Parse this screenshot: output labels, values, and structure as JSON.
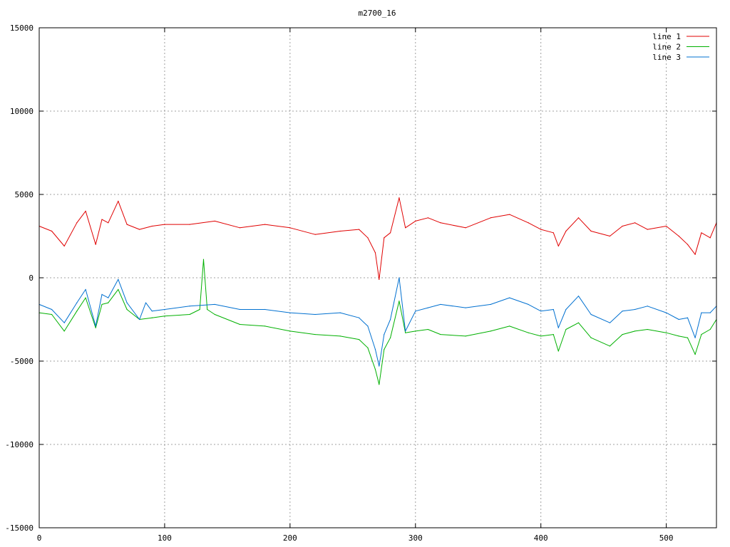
{
  "chart_data": {
    "type": "line",
    "title": "m2700_16",
    "xlabel": "",
    "ylabel": "",
    "xlim": [
      0,
      540
    ],
    "ylim": [
      -15000,
      15000
    ],
    "xticks": [
      0,
      100,
      200,
      300,
      400,
      500
    ],
    "yticks": [
      -15000,
      -10000,
      -5000,
      0,
      5000,
      10000,
      15000
    ],
    "grid": true,
    "legend_position": "top-right",
    "series": [
      {
        "name": "line 1",
        "color": "#e00000",
        "x": [
          0,
          10,
          20,
          30,
          37,
          45,
          50,
          55,
          63,
          70,
          80,
          90,
          100,
          120,
          140,
          160,
          180,
          200,
          220,
          240,
          255,
          262,
          268,
          271,
          275,
          280,
          287,
          292,
          300,
          310,
          320,
          340,
          360,
          375,
          390,
          400,
          410,
          414,
          420,
          430,
          440,
          455,
          465,
          475,
          485,
          500,
          510,
          517,
          523,
          528,
          535,
          540
        ],
        "y": [
          3100,
          2800,
          1900,
          3300,
          4000,
          2000,
          3500,
          3300,
          4600,
          3200,
          2900,
          3100,
          3200,
          3200,
          3400,
          3000,
          3200,
          3000,
          2600,
          2800,
          2900,
          2400,
          1500,
          -100,
          2400,
          2700,
          4800,
          3000,
          3400,
          3600,
          3300,
          3000,
          3600,
          3800,
          3300,
          2900,
          2700,
          1900,
          2800,
          3600,
          2800,
          2500,
          3100,
          3300,
          2900,
          3100,
          2500,
          2000,
          1400,
          2700,
          2400,
          3300
        ]
      },
      {
        "name": "line 2",
        "color": "#00b000",
        "x": [
          0,
          10,
          20,
          30,
          37,
          45,
          50,
          55,
          63,
          70,
          80,
          90,
          100,
          120,
          128,
          131,
          134,
          140,
          160,
          180,
          200,
          220,
          240,
          255,
          262,
          268,
          271,
          275,
          280,
          287,
          292,
          300,
          310,
          320,
          340,
          360,
          375,
          390,
          400,
          410,
          414,
          420,
          430,
          440,
          455,
          465,
          475,
          485,
          500,
          510,
          517,
          523,
          528,
          535,
          540
        ],
        "y": [
          -2100,
          -2200,
          -3200,
          -2000,
          -1200,
          -3000,
          -1600,
          -1500,
          -700,
          -1900,
          -2500,
          -2400,
          -2300,
          -2200,
          -1900,
          1100,
          -1900,
          -2200,
          -2800,
          -2900,
          -3200,
          -3400,
          -3500,
          -3700,
          -4200,
          -5500,
          -6400,
          -4300,
          -3600,
          -1400,
          -3300,
          -3200,
          -3100,
          -3400,
          -3500,
          -3200,
          -2900,
          -3300,
          -3500,
          -3400,
          -4400,
          -3100,
          -2700,
          -3600,
          -4100,
          -3400,
          -3200,
          -3100,
          -3300,
          -3500,
          -3600,
          -4600,
          -3400,
          -3100,
          -2500
        ]
      },
      {
        "name": "line 3",
        "color": "#0070d0",
        "x": [
          0,
          10,
          20,
          30,
          37,
          45,
          50,
          55,
          63,
          70,
          80,
          85,
          90,
          100,
          120,
          140,
          160,
          180,
          200,
          220,
          240,
          255,
          262,
          268,
          271,
          275,
          280,
          287,
          292,
          300,
          310,
          320,
          340,
          360,
          375,
          390,
          400,
          410,
          414,
          420,
          430,
          440,
          455,
          465,
          475,
          485,
          500,
          510,
          517,
          523,
          528,
          535,
          540
        ],
        "y": [
          -1600,
          -1900,
          -2700,
          -1500,
          -700,
          -2900,
          -1000,
          -1200,
          -100,
          -1500,
          -2500,
          -1500,
          -2000,
          -1900,
          -1700,
          -1600,
          -1900,
          -1900,
          -2100,
          -2200,
          -2100,
          -2400,
          -2900,
          -4300,
          -5300,
          -3400,
          -2500,
          0,
          -3200,
          -2000,
          -1800,
          -1600,
          -1800,
          -1600,
          -1200,
          -1600,
          -2000,
          -1900,
          -3000,
          -1900,
          -1100,
          -2200,
          -2700,
          -2000,
          -1900,
          -1700,
          -2100,
          -2500,
          -2400,
          -3600,
          -2100,
          -2100,
          -1700
        ]
      }
    ]
  }
}
